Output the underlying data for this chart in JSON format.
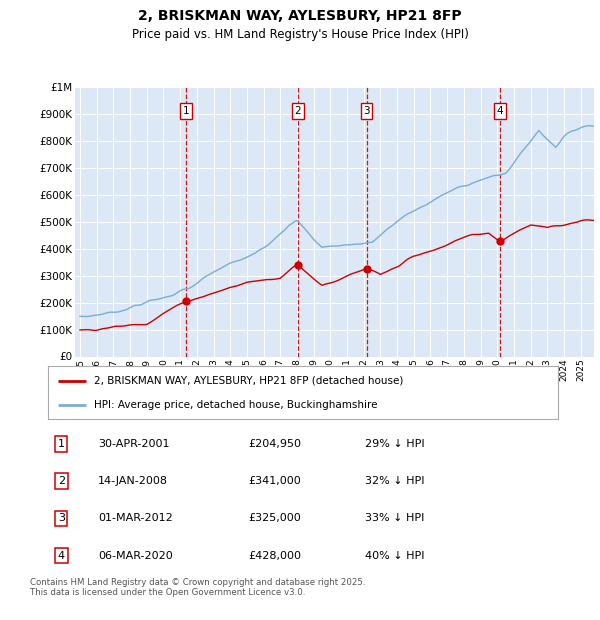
{
  "title": "2, BRISKMAN WAY, AYLESBURY, HP21 8FP",
  "subtitle": "Price paid vs. HM Land Registry's House Price Index (HPI)",
  "footer": "Contains HM Land Registry data © Crown copyright and database right 2025.\nThis data is licensed under the Open Government Licence v3.0.",
  "legend_line1": "2, BRISKMAN WAY, AYLESBURY, HP21 8FP (detached house)",
  "legend_line2": "HPI: Average price, detached house, Buckinghamshire",
  "red_color": "#cc0000",
  "blue_color": "#7aadd4",
  "bg_color": "#dce8f5",
  "ylim": [
    0,
    1000000
  ],
  "yticks": [
    0,
    100000,
    200000,
    300000,
    400000,
    500000,
    600000,
    700000,
    800000,
    900000,
    1000000
  ],
  "sale_dates": [
    2001.33,
    2008.04,
    2012.17,
    2020.18
  ],
  "sale_prices": [
    204950,
    341000,
    325000,
    428000
  ],
  "sale_labels": [
    "1",
    "2",
    "3",
    "4"
  ],
  "sale_info": [
    {
      "label": "1",
      "date": "30-APR-2001",
      "price": "£204,950",
      "pct": "29% ↓ HPI"
    },
    {
      "label": "2",
      "date": "14-JAN-2008",
      "price": "£341,000",
      "pct": "32% ↓ HPI"
    },
    {
      "label": "3",
      "date": "01-MAR-2012",
      "price": "£325,000",
      "pct": "33% ↓ HPI"
    },
    {
      "label": "4",
      "date": "06-MAR-2020",
      "price": "£428,000",
      "pct": "40% ↓ HPI"
    }
  ]
}
